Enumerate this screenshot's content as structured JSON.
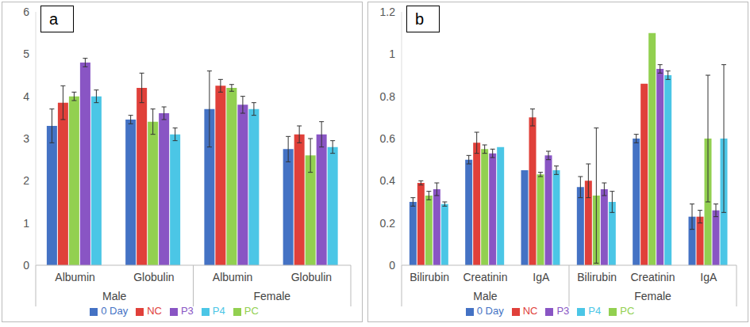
{
  "chart_data": [
    {
      "type": "bar",
      "title": "a",
      "categories": [
        "Albumin",
        "Globulin",
        "Albumin",
        "Globulin"
      ],
      "groups": [
        "Male",
        "Female"
      ],
      "ylim": [
        0,
        6
      ],
      "yticks": [
        0,
        1,
        2,
        3,
        4,
        5,
        6
      ],
      "grid": false,
      "legend": "bottom",
      "series": [
        {
          "name": "0 Day",
          "color": "#4472c4",
          "values": [
            3.3,
            3.45,
            3.7,
            2.75
          ],
          "errors": [
            0.4,
            0.1,
            0.9,
            0.3
          ]
        },
        {
          "name": "NC",
          "color": "#e0403a",
          "values": [
            3.85,
            4.2,
            4.25,
            3.1
          ],
          "errors": [
            0.4,
            0.35,
            0.15,
            0.2
          ]
        },
        {
          "name": "PC",
          "color": "#92d050",
          "values": [
            4.0,
            3.4,
            4.2,
            2.6
          ],
          "errors": [
            0.1,
            0.3,
            0.08,
            0.4
          ]
        },
        {
          "name": "P3",
          "color": "#8955c4",
          "values": [
            4.8,
            3.6,
            3.8,
            3.1
          ],
          "errors": [
            0.1,
            0.15,
            0.2,
            0.3
          ]
        },
        {
          "name": "P4",
          "color": "#4bc6e6",
          "values": [
            4.0,
            3.1,
            3.7,
            2.8
          ],
          "errors": [
            0.15,
            0.15,
            0.15,
            0.15
          ]
        }
      ]
    },
    {
      "type": "bar",
      "title": "b",
      "categories": [
        "Bilirubin",
        "Creatinin",
        "IgA",
        "Bilirubin",
        "Creatinin",
        "IgA"
      ],
      "groups": [
        "Male",
        "Female"
      ],
      "ylim": [
        0,
        1.2
      ],
      "yticks": [
        0,
        0.2,
        0.4,
        0.6,
        0.8,
        1,
        1.2
      ],
      "grid": false,
      "legend": "bottom",
      "series": [
        {
          "name": "0 Day",
          "color": "#4472c4",
          "values": [
            0.3,
            0.5,
            0.45,
            0.37,
            0.6,
            0.23
          ],
          "errors": [
            0.02,
            0.02,
            0,
            0.05,
            0.02,
            0.06
          ]
        },
        {
          "name": "NC",
          "color": "#e0403a",
          "values": [
            0.39,
            0.58,
            0.7,
            0.4,
            0.86,
            0.23
          ],
          "errors": [
            0.01,
            0.05,
            0.04,
            0.08,
            0,
            0.03
          ]
        },
        {
          "name": "PC",
          "color": "#92d050",
          "values": [
            0.33,
            0.55,
            0.43,
            0.33,
            1.1,
            0.6
          ],
          "errors": [
            0.02,
            0.02,
            0.01,
            0.32,
            0,
            0.3
          ]
        },
        {
          "name": "P3",
          "color": "#8955c4",
          "values": [
            0.36,
            0.53,
            0.52,
            0.36,
            0.93,
            0.26
          ],
          "errors": [
            0.03,
            0.02,
            0.02,
            0.03,
            0.02,
            0.03
          ]
        },
        {
          "name": "P4",
          "color": "#4bc6e6",
          "values": [
            0.29,
            0.56,
            0.45,
            0.3,
            0.9,
            0.6
          ],
          "errors": [
            0.01,
            0,
            0.02,
            0.05,
            0.02,
            0.35
          ]
        }
      ]
    }
  ]
}
